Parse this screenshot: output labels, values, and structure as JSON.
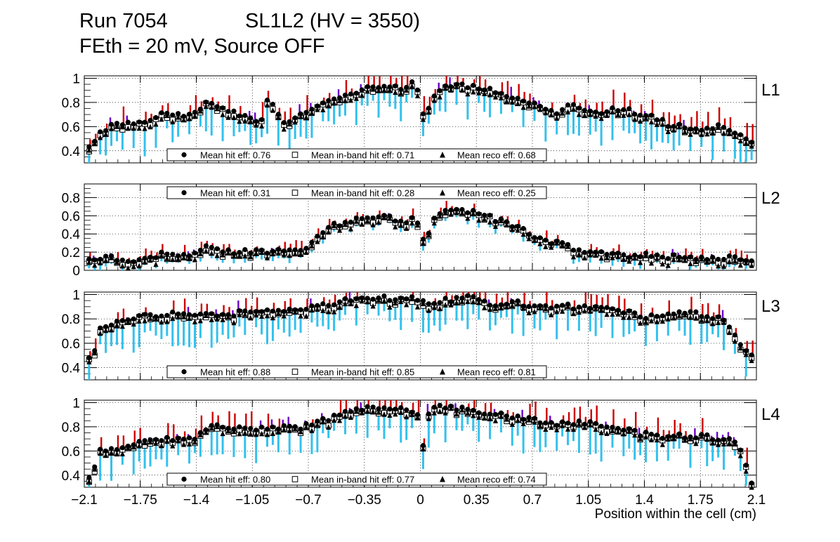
{
  "header": {
    "run": "Run 7054",
    "chamber": "SL1L2 (HV = 3550)",
    "conditions": "FEth = 20 mV, Source OFF"
  },
  "colors": {
    "hit_error": "#cc0000",
    "inband_error": "#6a00c8",
    "reco_error": "#33c1ee",
    "marker": "#000000",
    "grid": "#000000"
  },
  "chart_data": {
    "type": "scatter",
    "xlabel": "Position within the cell (cm)",
    "xlim": [
      -2.1,
      2.1
    ],
    "x_ticks": [
      "−2.1",
      "−1.75",
      "−1.4",
      "−1.05",
      "−0.7",
      "−0.35",
      "0",
      "0.35",
      "0.7",
      "1.05",
      "1.4",
      "1.75",
      "2.1"
    ],
    "x_tick_values": [
      -2.1,
      -1.75,
      -1.4,
      -1.05,
      -0.7,
      -0.35,
      0,
      0.35,
      0.7,
      1.05,
      1.4,
      1.75,
      2.1
    ],
    "series_names": [
      "Mean hit  eff",
      "Mean in-band hit eff",
      "Mean reco eff"
    ],
    "panels": [
      {
        "layer": "L1",
        "ylim": [
          0.3,
          1.02
        ],
        "y_ticks": [
          "0.4",
          "0.6",
          "0.8",
          "1"
        ],
        "y_tick_values": [
          0.4,
          0.6,
          0.8,
          1.0
        ],
        "legend_position": "bottom",
        "legend": [
          "Mean hit  eff: 0.76",
          "Mean in-band hit eff: 0.71",
          "Mean reco eff: 0.68"
        ],
        "profile": [
          [
            -2.07,
            0.42
          ],
          [
            -2.0,
            0.55
          ],
          [
            -1.9,
            0.62
          ],
          [
            -1.75,
            0.64
          ],
          [
            -1.6,
            0.7
          ],
          [
            -1.4,
            0.7
          ],
          [
            -1.35,
            0.8
          ],
          [
            -1.2,
            0.72
          ],
          [
            -1.05,
            0.68
          ],
          [
            -1.0,
            0.6
          ],
          [
            -0.95,
            0.85
          ],
          [
            -0.85,
            0.62
          ],
          [
            -0.7,
            0.72
          ],
          [
            -0.6,
            0.8
          ],
          [
            -0.5,
            0.85
          ],
          [
            -0.35,
            0.92
          ],
          [
            -0.2,
            0.92
          ],
          [
            -0.1,
            0.92
          ],
          [
            -0.05,
            0.99
          ],
          [
            0.0,
            0.84
          ],
          [
            0.02,
            0.7
          ],
          [
            0.1,
            0.88
          ],
          [
            0.2,
            0.95
          ],
          [
            0.35,
            0.93
          ],
          [
            0.5,
            0.88
          ],
          [
            0.6,
            0.84
          ],
          [
            0.7,
            0.78
          ],
          [
            0.85,
            0.72
          ],
          [
            0.95,
            0.78
          ],
          [
            1.1,
            0.72
          ],
          [
            1.25,
            0.75
          ],
          [
            1.4,
            0.7
          ],
          [
            1.55,
            0.62
          ],
          [
            1.7,
            0.58
          ],
          [
            1.85,
            0.6
          ],
          [
            2.0,
            0.52
          ],
          [
            2.07,
            0.45
          ]
        ],
        "hit_err_up": 0.07,
        "reco_err_down": 0.16
      },
      {
        "layer": "L2",
        "ylim": [
          0.0,
          0.95
        ],
        "y_ticks": [
          "0",
          "0.2",
          "0.4",
          "0.6",
          "0.8"
        ],
        "y_tick_values": [
          0.0,
          0.2,
          0.4,
          0.6,
          0.8
        ],
        "legend_position": "top",
        "legend": [
          "Mean hit  eff: 0.31",
          "Mean in-band hit eff: 0.28",
          "Mean reco eff: 0.25"
        ],
        "profile": [
          [
            -2.1,
            0.12
          ],
          [
            -1.95,
            0.15
          ],
          [
            -1.85,
            0.08
          ],
          [
            -1.75,
            0.13
          ],
          [
            -1.6,
            0.18
          ],
          [
            -1.4,
            0.18
          ],
          [
            -1.35,
            0.26
          ],
          [
            -1.2,
            0.2
          ],
          [
            -1.05,
            0.2
          ],
          [
            -0.95,
            0.2
          ],
          [
            -0.8,
            0.22
          ],
          [
            -0.7,
            0.24
          ],
          [
            -0.65,
            0.35
          ],
          [
            -0.55,
            0.5
          ],
          [
            -0.45,
            0.52
          ],
          [
            -0.35,
            0.6
          ],
          [
            -0.2,
            0.58
          ],
          [
            -0.1,
            0.52
          ],
          [
            -0.05,
            0.58
          ],
          [
            0.0,
            0.46
          ],
          [
            0.03,
            0.28
          ],
          [
            0.08,
            0.55
          ],
          [
            0.2,
            0.7
          ],
          [
            0.35,
            0.62
          ],
          [
            0.55,
            0.52
          ],
          [
            0.7,
            0.38
          ],
          [
            0.85,
            0.3
          ],
          [
            1.0,
            0.22
          ],
          [
            1.2,
            0.16
          ],
          [
            1.4,
            0.17
          ],
          [
            1.6,
            0.15
          ],
          [
            1.85,
            0.14
          ],
          [
            2.0,
            0.12
          ],
          [
            2.1,
            0.08
          ]
        ],
        "hit_err_up": 0.05,
        "reco_err_down": 0.06
      },
      {
        "layer": "L3",
        "ylim": [
          0.3,
          1.02
        ],
        "y_ticks": [
          "0.4",
          "0.6",
          "0.8",
          "1"
        ],
        "y_tick_values": [
          0.4,
          0.6,
          0.8,
          1.0
        ],
        "legend_position": "bottom",
        "legend": [
          "Mean hit  eff: 0.88",
          "Mean in-band hit eff: 0.85",
          "Mean reco eff: 0.81"
        ],
        "profile": [
          [
            -2.05,
            0.46
          ],
          [
            -2.0,
            0.72
          ],
          [
            -1.9,
            0.78
          ],
          [
            -1.75,
            0.82
          ],
          [
            -1.55,
            0.85
          ],
          [
            -1.4,
            0.85
          ],
          [
            -1.2,
            0.82
          ],
          [
            -1.05,
            0.88
          ],
          [
            -0.85,
            0.88
          ],
          [
            -0.7,
            0.9
          ],
          [
            -0.55,
            0.93
          ],
          [
            -0.4,
            0.97
          ],
          [
            -0.2,
            0.97
          ],
          [
            -0.05,
            0.99
          ],
          [
            0.0,
            0.96
          ],
          [
            0.05,
            0.93
          ],
          [
            0.2,
            0.96
          ],
          [
            0.35,
            0.99
          ],
          [
            0.45,
            0.92
          ],
          [
            0.6,
            0.94
          ],
          [
            0.7,
            0.9
          ],
          [
            0.85,
            0.9
          ],
          [
            1.0,
            0.9
          ],
          [
            1.2,
            0.87
          ],
          [
            1.4,
            0.82
          ],
          [
            1.55,
            0.84
          ],
          [
            1.7,
            0.84
          ],
          [
            1.85,
            0.82
          ],
          [
            1.95,
            0.72
          ],
          [
            2.0,
            0.6
          ],
          [
            2.05,
            0.5
          ]
        ],
        "hit_err_up": 0.06,
        "reco_err_down": 0.16
      },
      {
        "layer": "L4",
        "ylim": [
          0.3,
          1.02
        ],
        "y_ticks": [
          "0.4",
          "0.6",
          "0.8",
          "1"
        ],
        "y_tick_values": [
          0.4,
          0.6,
          0.8,
          1.0
        ],
        "legend_position": "bottom",
        "legend": [
          "Mean hit  eff: 0.80",
          "Mean in-band hit eff: 0.77",
          "Mean reco eff: 0.74"
        ],
        "profile": [
          [
            -2.1,
            0.34
          ],
          [
            -2.05,
            0.42
          ],
          [
            -2.0,
            0.6
          ],
          [
            -1.9,
            0.62
          ],
          [
            -1.75,
            0.66
          ],
          [
            -1.6,
            0.7
          ],
          [
            -1.4,
            0.72
          ],
          [
            -1.3,
            0.8
          ],
          [
            -1.1,
            0.78
          ],
          [
            -0.9,
            0.8
          ],
          [
            -0.8,
            0.78
          ],
          [
            -0.7,
            0.82
          ],
          [
            -0.55,
            0.88
          ],
          [
            -0.4,
            0.95
          ],
          [
            -0.2,
            0.96
          ],
          [
            -0.05,
            0.92
          ],
          [
            0.0,
            0.86
          ],
          [
            0.02,
            0.62
          ],
          [
            0.06,
            0.97
          ],
          [
            0.2,
            0.96
          ],
          [
            0.35,
            0.93
          ],
          [
            0.55,
            0.9
          ],
          [
            0.7,
            0.86
          ],
          [
            0.85,
            0.82
          ],
          [
            1.0,
            0.84
          ],
          [
            1.2,
            0.8
          ],
          [
            1.35,
            0.75
          ],
          [
            1.5,
            0.72
          ],
          [
            1.65,
            0.72
          ],
          [
            1.8,
            0.72
          ],
          [
            1.95,
            0.68
          ],
          [
            2.0,
            0.63
          ],
          [
            2.07,
            0.32
          ]
        ],
        "hit_err_up": 0.07,
        "reco_err_down": 0.17
      }
    ]
  }
}
